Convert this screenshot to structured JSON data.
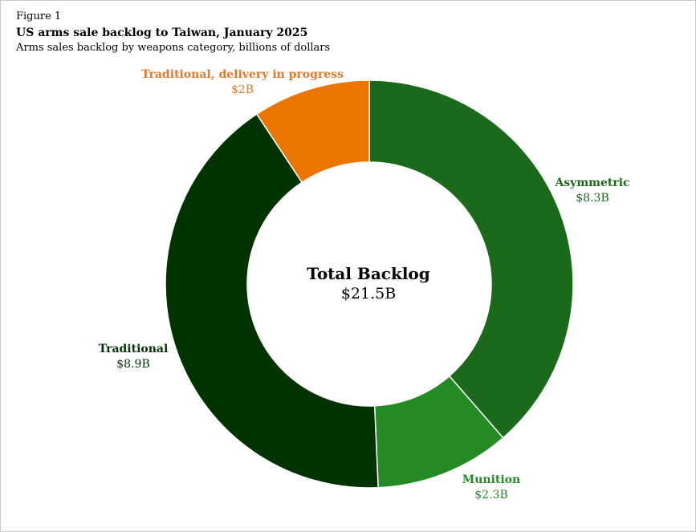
{
  "figure_label": "Figure 1",
  "title": "US arms sale backlog to Taiwan, January 2025",
  "subtitle": "Arms sales backlog by weapons category, billions of dollars",
  "chart_data": {
    "type": "pie",
    "donut": true,
    "center_label": {
      "title": "Total Backlog",
      "value": "$21.5B"
    },
    "series": [
      {
        "name": "Asymmetric",
        "value": 8.3,
        "label": "$8.3B",
        "color": "#1b6a1b"
      },
      {
        "name": "Munition",
        "value": 2.3,
        "label": "$2.3B",
        "color": "#248b24"
      },
      {
        "name": "Traditional",
        "value": 8.9,
        "label": "$8.9B",
        "color": "#003300"
      },
      {
        "name": "Traditional, delivery in progress",
        "value": 2.0,
        "label": "$2B",
        "color": "#ea7500"
      }
    ],
    "label_colors": {
      "Asymmetric": "#1b6a1b",
      "Munition": "#248b24",
      "Traditional": "#003300",
      "Traditional, delivery in progress": "#e07a30"
    }
  }
}
